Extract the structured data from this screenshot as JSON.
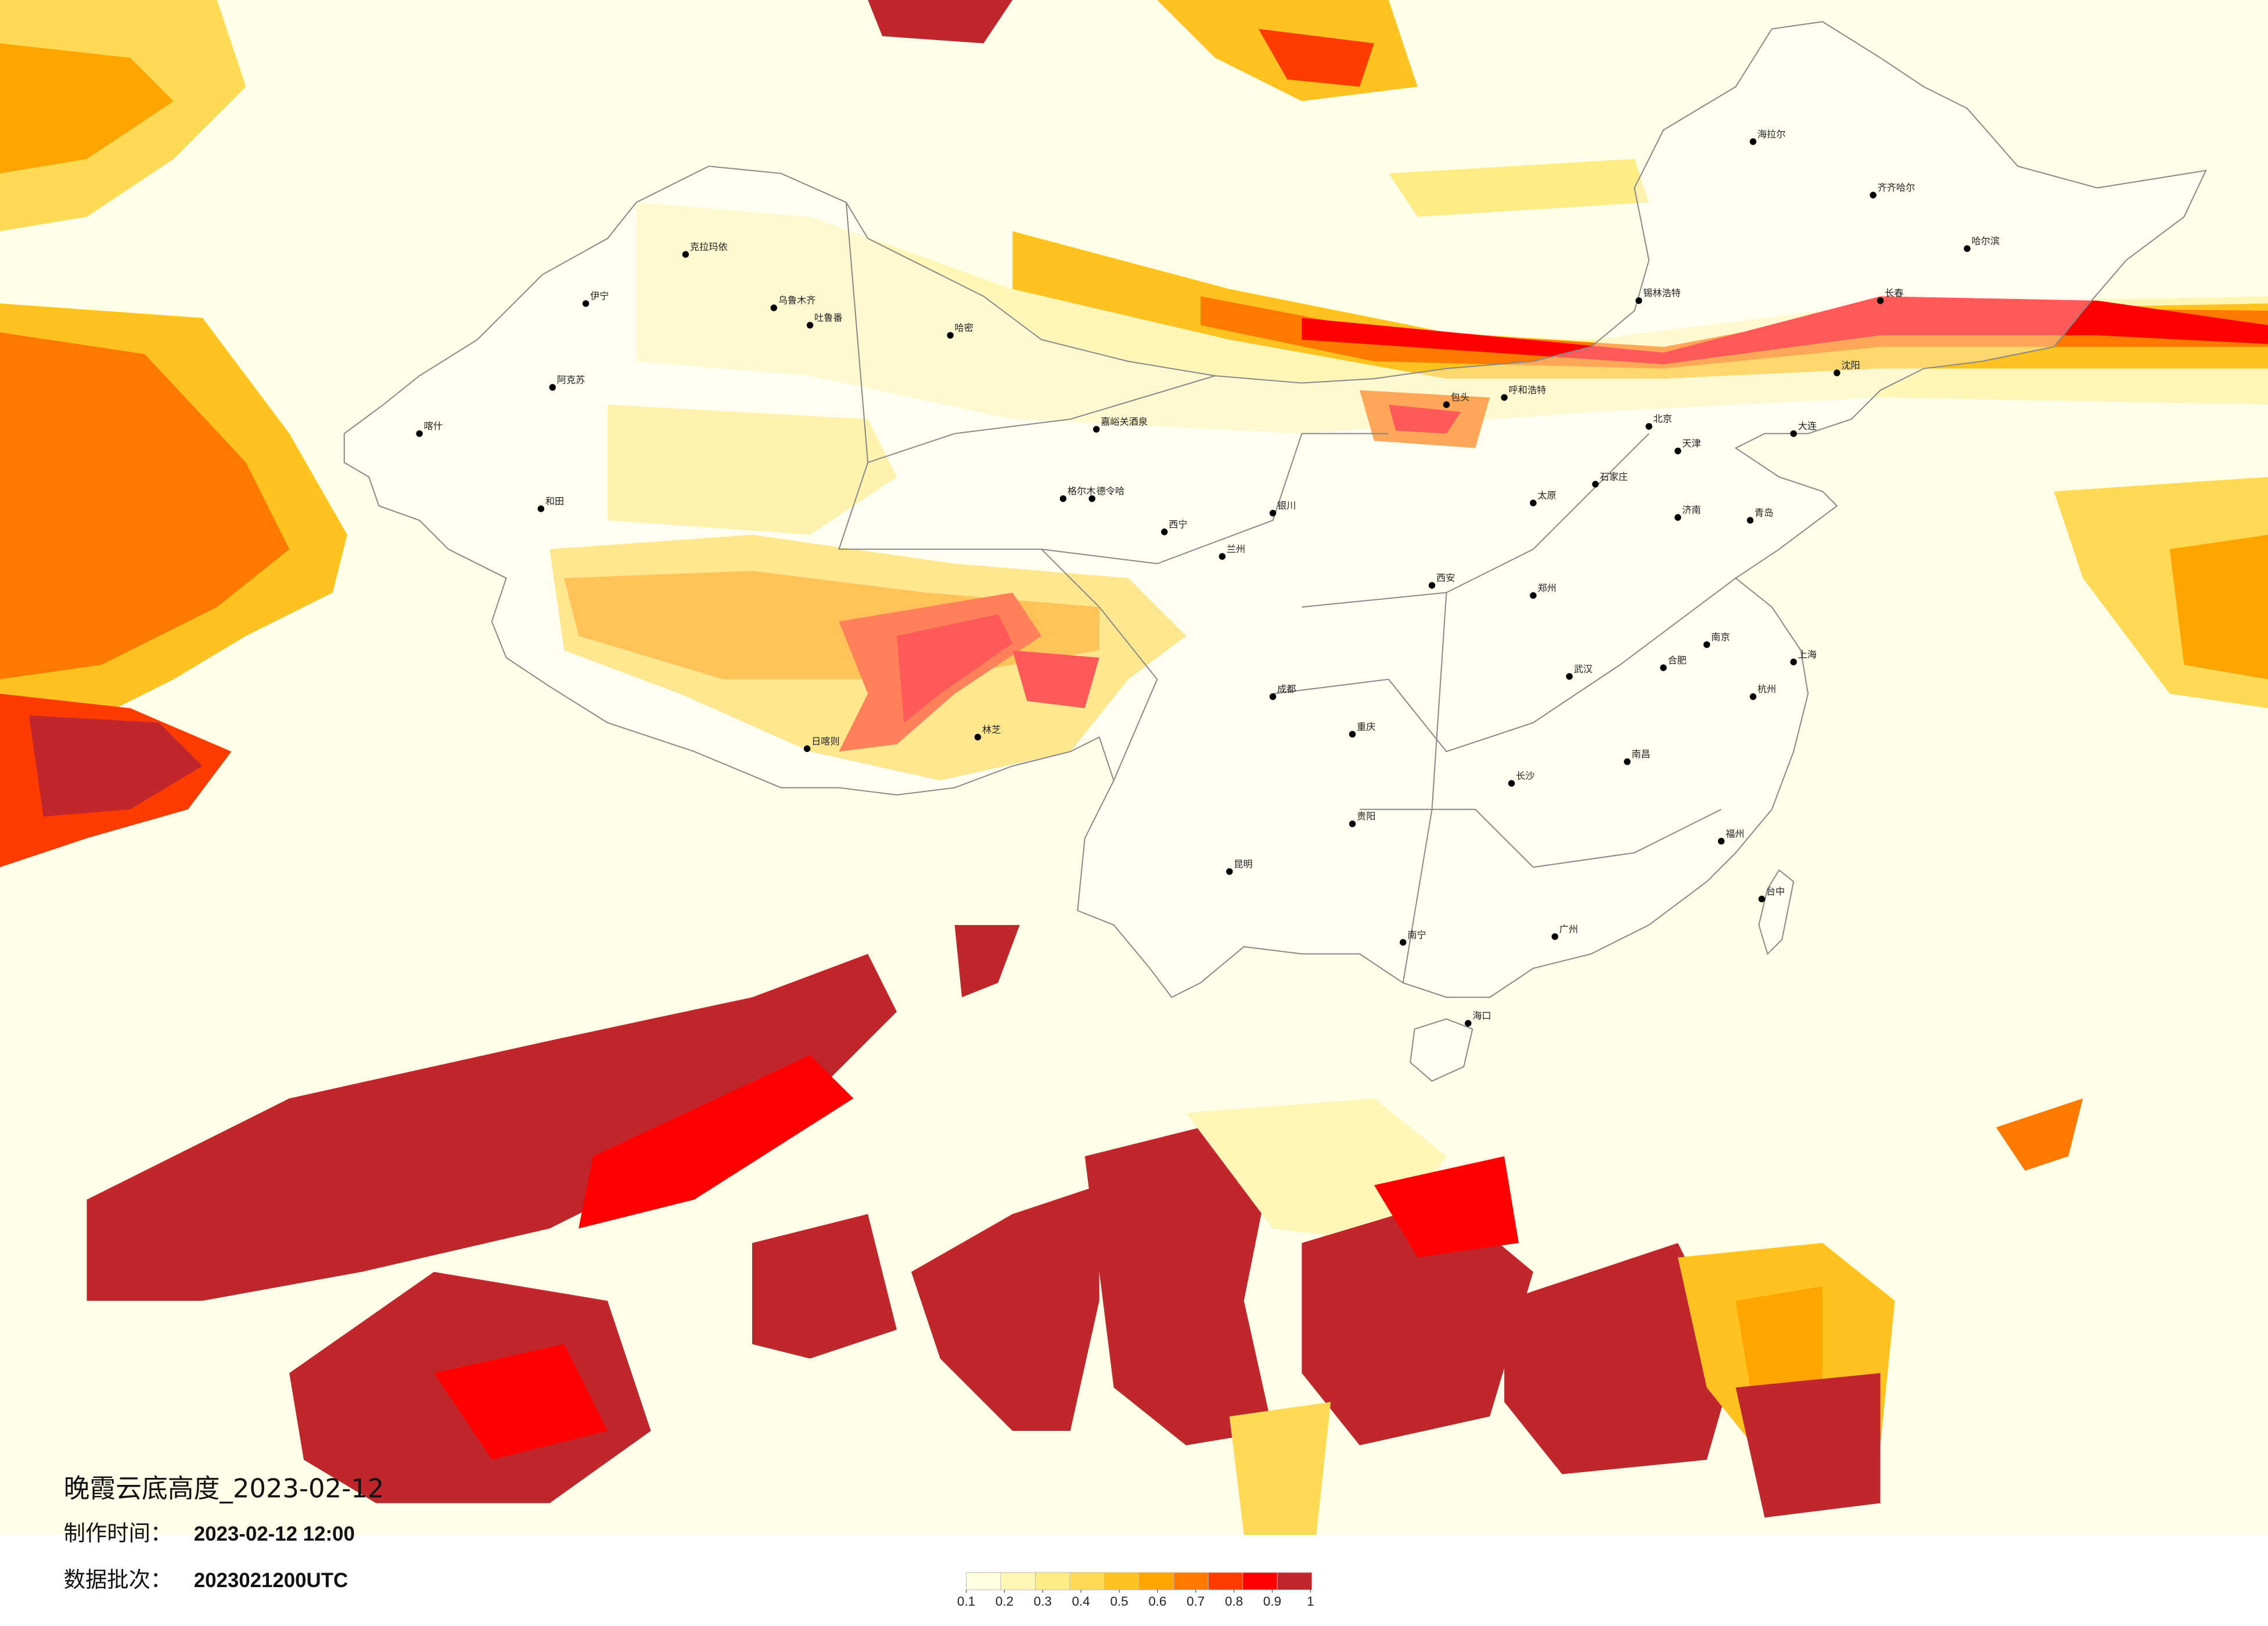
{
  "title": "晚霞云底高度_2023-02-12",
  "production_time": {
    "label": "制作时间：",
    "value": "2023-02-12 12:00"
  },
  "data_batch": {
    "label": "数据批次：",
    "value": "2023021200UTC"
  },
  "colorbar": {
    "ticks": [
      0.1,
      0.2,
      0.3,
      0.4,
      0.5,
      0.6,
      0.7,
      0.8,
      0.9,
      1
    ],
    "colors": [
      "#fffde2",
      "#fff6b8",
      "#ffec85",
      "#ffdb55",
      "#ffc21e",
      "#ffa400",
      "#ff7800",
      "#ff3c00",
      "#ff0000",
      "#c0272d"
    ]
  },
  "cities": [
    "克拉玛依",
    "伊宁",
    "乌鲁木齐",
    "吐鲁番",
    "哈密",
    "阿克苏",
    "和田",
    "喀什",
    "嘉峪关酒泉",
    "格尔木",
    "德令哈",
    "西宁",
    "兰州",
    "银川",
    "日喀则",
    "林芝",
    "呼和浩特",
    "包头",
    "北京",
    "天津",
    "石家庄",
    "太原",
    "济南",
    "郑州",
    "西安",
    "成都",
    "重庆",
    "贵阳",
    "昆明",
    "南宁",
    "广州",
    "长沙",
    "武汉",
    "南昌",
    "福州",
    "杭州",
    "上海",
    "南京",
    "合肥",
    "沈阳",
    "长春",
    "哈尔滨",
    "海拉尔",
    "齐齐哈尔",
    "锡林浩特",
    "海口",
    "台中",
    "大连",
    "青岛"
  ]
}
